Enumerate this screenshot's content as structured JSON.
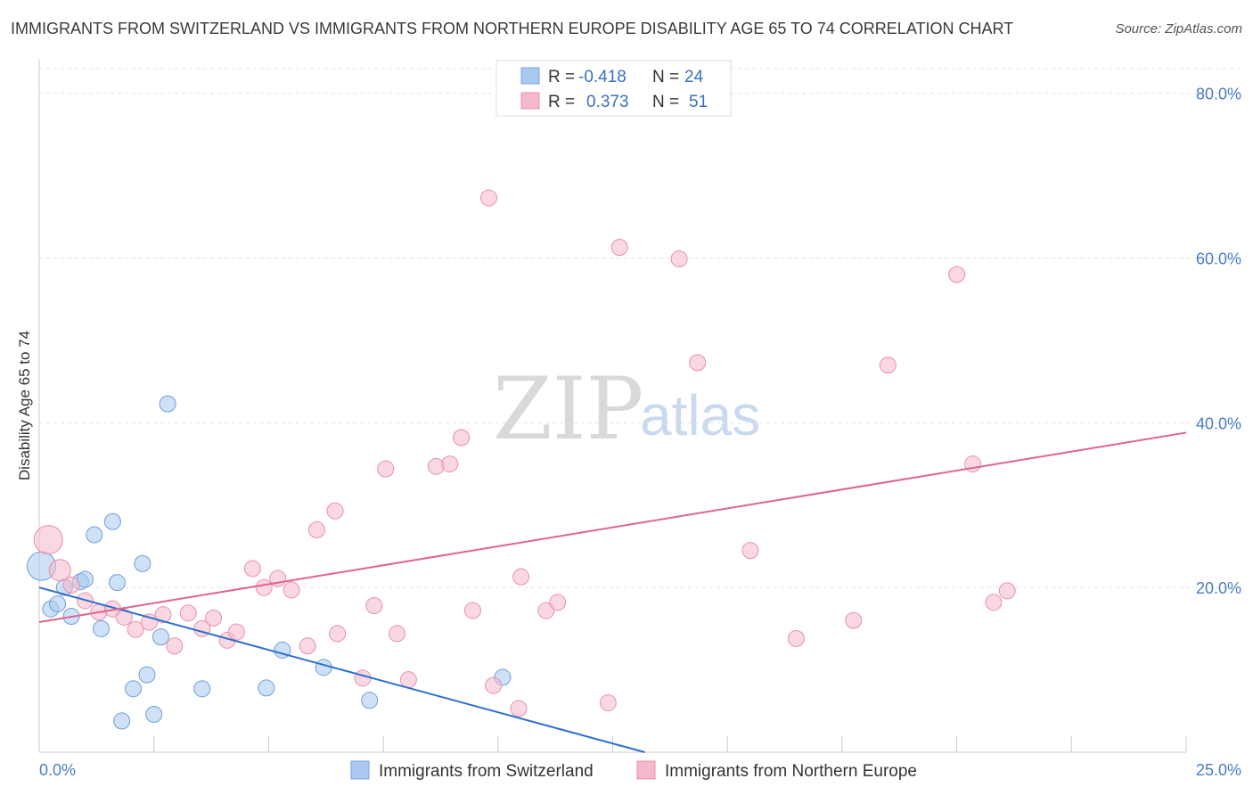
{
  "title": "IMMIGRANTS FROM SWITZERLAND VS IMMIGRANTS FROM NORTHERN EUROPE DISABILITY AGE 65 TO 74 CORRELATION CHART",
  "source": "Source: ZipAtlas.com",
  "watermark": {
    "zip": "ZIP",
    "atlas": "atlas"
  },
  "legend": {
    "rows": [
      {
        "r_label": "R =",
        "r_value": "-0.418",
        "n_label": "N =",
        "n_value": "24",
        "color": "#a8c8f0"
      },
      {
        "r_label": "R =",
        "r_value": "0.373",
        "n_label": "N =",
        "n_value": "51",
        "color": "#f5b8cc"
      }
    ]
  },
  "chart_data": {
    "type": "scatter",
    "ylabel": "Disability Age 65 to 74",
    "x_tick_labels": [
      "0.0%",
      "25.0%"
    ],
    "y_tick_labels": [
      "20.0%",
      "40.0%",
      "60.0%",
      "80.0%"
    ],
    "y_ticks": [
      20,
      40,
      60,
      80
    ],
    "xlim": [
      0,
      25
    ],
    "ylim": [
      0,
      83
    ],
    "grid": true,
    "series": [
      {
        "name": "Immigrants from Switzerland",
        "color": "#a8c8f0",
        "stroke": "#6f9fd8",
        "line_color": "#2f6fd0",
        "trend": {
          "x": [
            0,
            13.2
          ],
          "y": [
            20.0,
            0
          ]
        },
        "points": [
          [
            0.05,
            22.6,
            16
          ],
          [
            0.25,
            17.4,
            9
          ],
          [
            0.4,
            18.0,
            9
          ],
          [
            0.55,
            20.0,
            9
          ],
          [
            0.7,
            16.5,
            9
          ],
          [
            0.9,
            20.7,
            9
          ],
          [
            1.0,
            21.0,
            9
          ],
          [
            1.2,
            26.4,
            9
          ],
          [
            1.35,
            15.0,
            9
          ],
          [
            1.6,
            28.0,
            9
          ],
          [
            1.7,
            20.6,
            9
          ],
          [
            2.25,
            22.9,
            9
          ],
          [
            2.8,
            42.3,
            9
          ],
          [
            2.65,
            14.0,
            9
          ],
          [
            2.35,
            9.4,
            9
          ],
          [
            2.05,
            7.7,
            9
          ],
          [
            1.8,
            3.8,
            9
          ],
          [
            2.5,
            4.6,
            9
          ],
          [
            3.55,
            7.7,
            9
          ],
          [
            4.95,
            7.8,
            9
          ],
          [
            5.3,
            12.4,
            9
          ],
          [
            6.2,
            10.3,
            9
          ],
          [
            7.2,
            6.3,
            9
          ],
          [
            10.1,
            9.1,
            9
          ]
        ]
      },
      {
        "name": "Immigrants from Northern Europe",
        "color": "#f5b8cc",
        "stroke": "#e890ad",
        "line_color": "#e0648e",
        "trend": {
          "x": [
            0,
            25
          ],
          "y": [
            15.8,
            38.8
          ]
        },
        "points": [
          [
            0.2,
            25.8,
            16
          ],
          [
            0.45,
            22.1,
            12
          ],
          [
            0.7,
            20.3,
            9
          ],
          [
            1.0,
            18.4,
            9
          ],
          [
            1.3,
            17.0,
            9
          ],
          [
            1.6,
            17.4,
            9
          ],
          [
            1.85,
            16.4,
            9
          ],
          [
            2.1,
            14.9,
            9
          ],
          [
            2.4,
            15.8,
            9
          ],
          [
            2.7,
            16.7,
            9
          ],
          [
            2.95,
            12.9,
            9
          ],
          [
            3.25,
            16.9,
            9
          ],
          [
            3.55,
            15.0,
            9
          ],
          [
            3.8,
            16.3,
            9
          ],
          [
            4.1,
            13.6,
            9
          ],
          [
            4.3,
            14.6,
            9
          ],
          [
            4.65,
            22.3,
            9
          ],
          [
            4.9,
            20.0,
            9
          ],
          [
            5.2,
            21.1,
            9
          ],
          [
            5.5,
            19.7,
            9
          ],
          [
            5.85,
            12.9,
            9
          ],
          [
            6.05,
            27.0,
            9
          ],
          [
            6.45,
            29.3,
            9
          ],
          [
            6.5,
            14.4,
            9
          ],
          [
            7.05,
            9.0,
            9
          ],
          [
            7.3,
            17.8,
            9
          ],
          [
            7.55,
            34.4,
            9
          ],
          [
            7.8,
            14.4,
            9
          ],
          [
            8.05,
            8.8,
            9
          ],
          [
            8.65,
            34.7,
            9
          ],
          [
            8.95,
            35.0,
            9
          ],
          [
            9.2,
            38.2,
            9
          ],
          [
            9.45,
            17.2,
            9
          ],
          [
            9.8,
            67.3,
            9
          ],
          [
            9.9,
            8.1,
            9
          ],
          [
            10.45,
            5.3,
            9
          ],
          [
            10.5,
            21.3,
            9
          ],
          [
            11.05,
            17.2,
            9
          ],
          [
            11.3,
            18.2,
            9
          ],
          [
            12.4,
            6.0,
            9
          ],
          [
            12.65,
            61.3,
            9
          ],
          [
            13.95,
            59.9,
            9
          ],
          [
            14.35,
            47.3,
            9
          ],
          [
            15.5,
            24.5,
            9
          ],
          [
            16.5,
            13.8,
            9
          ],
          [
            17.75,
            16.0,
            9
          ],
          [
            18.5,
            47.0,
            9
          ],
          [
            20.0,
            58.0,
            9
          ],
          [
            20.35,
            35.0,
            9
          ],
          [
            20.8,
            18.2,
            9
          ],
          [
            21.1,
            19.6,
            9
          ]
        ]
      }
    ]
  }
}
